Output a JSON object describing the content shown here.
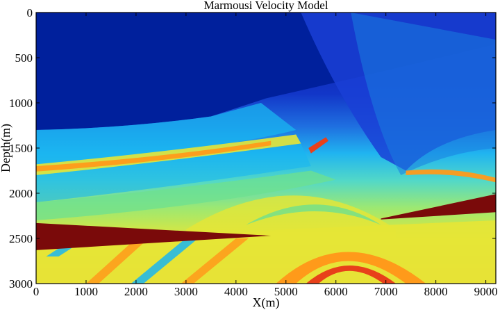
{
  "chart_data": {
    "type": "heatmap",
    "title": "Marmousi Velocity Model",
    "xlabel": "X(m)",
    "ylabel": "Depth(m)",
    "xlim": [
      0,
      9200
    ],
    "ylim": [
      0,
      3000
    ],
    "y_axis_inverted": true,
    "xticks": [
      0,
      1000,
      2000,
      3000,
      4000,
      5000,
      6000,
      7000,
      8000,
      9000
    ],
    "yticks": [
      0,
      500,
      1000,
      1500,
      2000,
      2500,
      3000
    ],
    "colormap": "jet",
    "colormap_stops": [
      "#00008f",
      "#0000ff",
      "#0080ff",
      "#00ffff",
      "#80ff80",
      "#ffff00",
      "#ff8000",
      "#ff0000",
      "#800000"
    ],
    "grid": false,
    "legend": "none",
    "colors": {
      "water_top": "#00209c",
      "shallow": "#1a3fd6",
      "mid_blue": "#1a7de0",
      "cyan": "#19b6f0",
      "green": "#6ee08f",
      "yellow": "#e6e636",
      "orange": "#ff9a1a",
      "red": "#e8401a",
      "dark_red": "#7a0a0a"
    }
  }
}
